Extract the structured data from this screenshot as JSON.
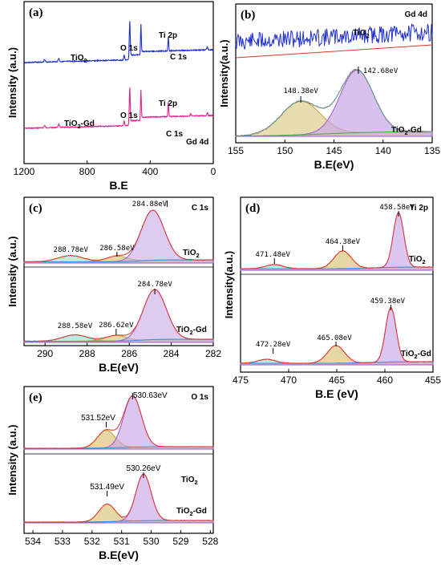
{
  "colors": {
    "blue": "#1f2fd0",
    "pink": "#e0238a",
    "red": "#e2352a",
    "purple": "#9b59c9",
    "purpleFill": "#c8a8e6",
    "olive": "#b9a436",
    "oliveFill": "#dccb85",
    "teal": "#2cb8b0",
    "tealFill": "#9fe2dc",
    "green": "#4aa64a",
    "baseline": "#3a8fd6"
  },
  "chart_data": [
    {
      "id": "a",
      "type": "line",
      "panel_label": "(a)",
      "xlabel": "B.E",
      "ylabel": "Intensity (a.u.)",
      "xlim": [
        1200,
        0
      ],
      "xticks": [
        "1200",
        "800",
        "400",
        "0"
      ],
      "series": [
        {
          "name": "TiO2",
          "label_main": "TiO",
          "label_sub": "2",
          "color": "blue",
          "peaks": [
            {
              "text": "O 1s"
            },
            {
              "text": "Ti 2p"
            },
            {
              "text": "C 1s"
            }
          ]
        },
        {
          "name": "TiO2-Gd",
          "label_main": "TiO",
          "label_sub": "2",
          "label_suffix": "-Gd",
          "color": "pink",
          "peaks": [
            {
              "text": "O 1s"
            },
            {
              "text": "Ti 2p"
            },
            {
              "text": "C 1s"
            },
            {
              "text": "Gd 4d"
            }
          ]
        }
      ],
      "peak_positions": {
        "O 1s": 530,
        "Ti 2p": 459,
        "C 1s": 285,
        "Gd 4d": 143
      }
    },
    {
      "id": "b",
      "type": "line",
      "panel_label": "(b)",
      "title": "Gd 4d",
      "xlabel": "B.E(eV)",
      "ylabel": "Intensity(a.u.)",
      "xlim": [
        155,
        135
      ],
      "xticks": [
        "155",
        "150",
        "145",
        "140",
        "135"
      ],
      "series": [
        {
          "name": "TiO2",
          "label_main": "TiO",
          "label_sub": "2"
        },
        {
          "name": "TiO2-Gd",
          "label_main": "TiO",
          "label_sub": "2",
          "label_suffix": "-Gd"
        }
      ],
      "peaks": [
        {
          "center": 148.38,
          "label": "148.38eV"
        },
        {
          "center": 142.68,
          "label": "142.68eV"
        }
      ]
    },
    {
      "id": "c",
      "type": "line",
      "panel_label": "(c)",
      "title": "C 1s",
      "xlabel": "B.E(eV)",
      "ylabel": "Intensity (a.u.)",
      "xlim": [
        291,
        282
      ],
      "xticks": [
        "290",
        "288",
        "286",
        "284",
        "282"
      ],
      "series": [
        {
          "name": "TiO2",
          "label_main": "TiO",
          "label_sub": "2",
          "peaks": [
            {
              "center": 288.78,
              "label": "288.78eV"
            },
            {
              "center": 286.58,
              "label": "286.58eV"
            },
            {
              "center": 284.88,
              "label": "284.88eV"
            }
          ]
        },
        {
          "name": "TiO2-Gd",
          "label_main": "TiO",
          "label_sub": "2",
          "label_suffix": "-Gd",
          "peaks": [
            {
              "center": 288.58,
              "label": "288.58eV"
            },
            {
              "center": 286.62,
              "label": "286.62eV"
            },
            {
              "center": 284.78,
              "label": "284.78eV"
            }
          ]
        }
      ]
    },
    {
      "id": "d",
      "type": "line",
      "panel_label": "(d)",
      "title": "Ti 2p",
      "xlabel": "B.E  (eV)",
      "ylabel": "Intensity(a.u.)",
      "xlim": [
        475,
        455
      ],
      "xticks": [
        "475",
        "470",
        "465",
        "460",
        "455"
      ],
      "series": [
        {
          "name": "TiO2",
          "label_main": "TiO",
          "label_sub": "2",
          "peaks": [
            {
              "center": 471.48,
              "label": "471.48eV"
            },
            {
              "center": 464.38,
              "label": "464.38eV"
            },
            {
              "center": 458.58,
              "label": "458.58eV"
            }
          ]
        },
        {
          "name": "TiO2-Gd",
          "label_main": "TiO",
          "label_sub": "2",
          "label_suffix": "-Gd",
          "peaks": [
            {
              "center": 472.28,
              "label": "472.28eV"
            },
            {
              "center": 465.08,
              "label": "465.08eV"
            },
            {
              "center": 459.38,
              "label": "459.38eV"
            }
          ]
        }
      ]
    },
    {
      "id": "e",
      "type": "line",
      "panel_label": "(e)",
      "title": "O 1s",
      "xlabel": "B.E(eV)",
      "ylabel": "Intensity (a.u.)",
      "xlim": [
        534.3,
        527.9
      ],
      "xticks": [
        "534",
        "533",
        "532",
        "531",
        "530",
        "529",
        "528"
      ],
      "series": [
        {
          "name": "TiO2",
          "label_main": "TiO",
          "label_sub": "2",
          "peaks": [
            {
              "center": 531.52,
              "label": "531.52eV"
            },
            {
              "center": 530.63,
              "label": "530.63eV"
            }
          ]
        },
        {
          "name": "TiO2-Gd",
          "label_main": "TiO",
          "label_sub": "2",
          "label_suffix": "-Gd",
          "peaks": [
            {
              "center": 531.49,
              "label": "531.49eV"
            },
            {
              "center": 530.26,
              "label": "530.26eV"
            }
          ]
        }
      ]
    }
  ]
}
